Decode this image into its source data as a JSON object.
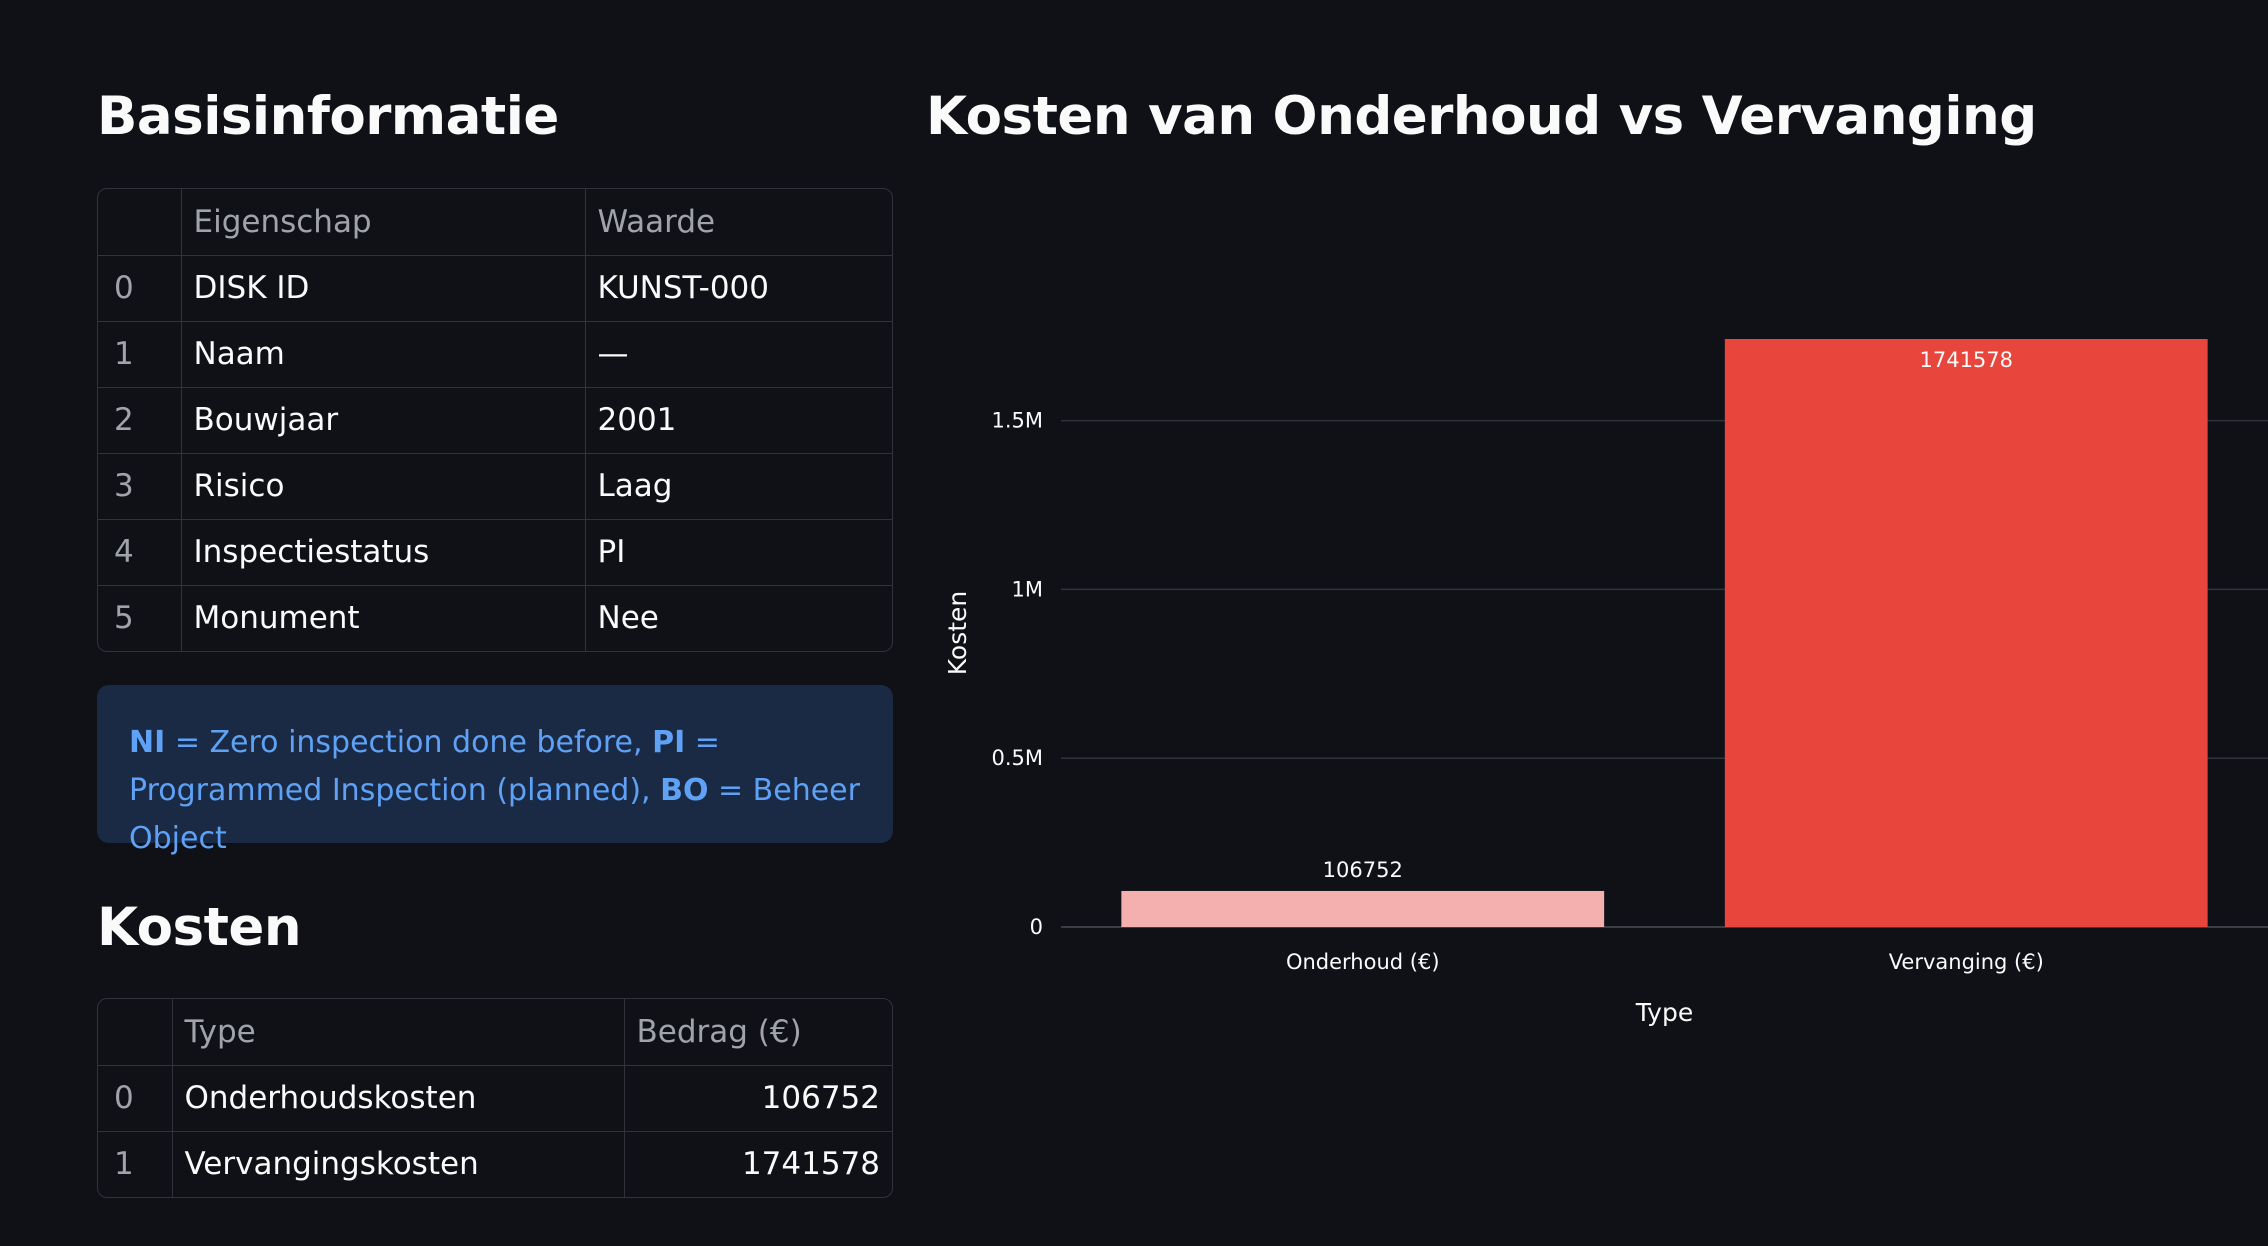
{
  "basis": {
    "title": "Basisinformatie",
    "columns": [
      "",
      "Eigenschap",
      "Waarde"
    ],
    "rows": [
      {
        "index": "0",
        "eigenschap": "DISK ID",
        "waarde": "KUNST-000"
      },
      {
        "index": "1",
        "eigenschap": "Naam",
        "waarde": "—"
      },
      {
        "index": "2",
        "eigenschap": "Bouwjaar",
        "waarde": "2001"
      },
      {
        "index": "3",
        "eigenschap": "Risico",
        "waarde": "Laag"
      },
      {
        "index": "4",
        "eigenschap": "Inspectiestatus",
        "waarde": "PI"
      },
      {
        "index": "5",
        "eigenschap": "Monument",
        "waarde": "Nee"
      }
    ]
  },
  "info": {
    "ni_code": "NI",
    "ni_text": " = Zero inspection done before, ",
    "pi_code": "PI",
    "pi_text": " = Programmed Inspection (planned), ",
    "bo_code": "BO",
    "bo_text": " = Beheer Object"
  },
  "kosten": {
    "title": "Kosten",
    "columns": [
      "",
      "Type",
      "Bedrag (€)"
    ],
    "rows": [
      {
        "index": "0",
        "type": "Onderhoudskosten",
        "bedrag": "106752"
      },
      {
        "index": "1",
        "type": "Vervangingskosten",
        "bedrag": "1741578"
      }
    ]
  },
  "chart_data": {
    "type": "bar",
    "title": "Kosten van Onderhoud vs Vervanging",
    "categories": [
      "Onderhoud (€)",
      "Vervanging (€)"
    ],
    "values": [
      106752,
      1741578
    ],
    "data_labels": [
      "106752",
      "1741578"
    ],
    "colors": [
      "#f3b0ae",
      "#e8453c"
    ],
    "xlabel": "Type",
    "ylabel": "Kosten",
    "ylim": [
      0,
      1741578
    ],
    "yticks": [
      0,
      500000,
      1000000,
      1500000
    ],
    "ytick_labels": [
      "0",
      "0.5M",
      "1M",
      "1.5M"
    ],
    "grid": true,
    "legend": "none"
  }
}
